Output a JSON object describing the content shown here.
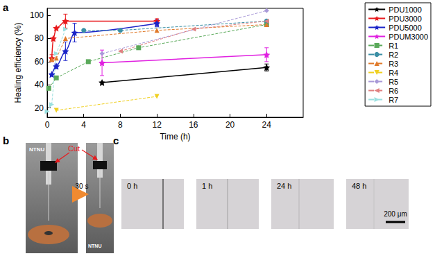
{
  "chart_data": {
    "type": "line",
    "xlabel": "Time (h)",
    "ylabel": "Healing efficiency (%)",
    "xlim": [
      0,
      28
    ],
    "xticks": [
      0,
      4,
      8,
      12,
      16,
      20,
      24
    ],
    "ylim": [
      12,
      106
    ],
    "yticks": [
      20,
      40,
      60,
      80,
      100
    ],
    "grid": false,
    "legend": "right",
    "series": [
      {
        "name": "PDU1000",
        "color": "#000000",
        "marker": "star",
        "line_style": "solid",
        "x": [
          6,
          24
        ],
        "values": [
          42,
          55
        ],
        "errors": [
          null,
          3
        ]
      },
      {
        "name": "PDU3000",
        "color": "#e8191c",
        "marker": "star",
        "line_style": "solid",
        "x": [
          0.5,
          0.67,
          1,
          2,
          12
        ],
        "values": [
          63,
          80,
          89,
          95,
          95
        ],
        "errors": [
          3,
          null,
          null,
          6,
          2
        ]
      },
      {
        "name": "PDU5000",
        "color": "#1a23c8",
        "marker": "star",
        "line_style": "solid",
        "x": [
          0.5,
          1,
          2,
          3,
          12
        ],
        "values": [
          49,
          56,
          69,
          85,
          93
        ],
        "errors": [
          null,
          2,
          8,
          8,
          3
        ]
      },
      {
        "name": "PDUM3000",
        "color": "#e020e0",
        "marker": "star",
        "line_style": "solid",
        "x": [
          6,
          24
        ],
        "values": [
          59,
          66
        ],
        "errors": [
          11,
          6
        ]
      },
      {
        "name": "R1",
        "color": "#5aa95a",
        "marker": "square",
        "line_style": "dashed",
        "x": [
          0.17,
          1,
          4.5,
          10,
          24
        ],
        "values": [
          37,
          46,
          60,
          72,
          92
        ]
      },
      {
        "name": "R2",
        "color": "#3a8fa5",
        "marker": "circle",
        "line_style": "dashed",
        "x": [
          4,
          8,
          24
        ],
        "values": [
          87,
          87,
          95
        ]
      },
      {
        "name": "R3",
        "color": "#e07a2a",
        "marker": "triangle",
        "line_style": "dashed",
        "x": [
          0.5,
          1,
          2,
          12,
          24
        ],
        "values": [
          62,
          63,
          80,
          87,
          92
        ]
      },
      {
        "name": "R4",
        "color": "#f0d020",
        "marker": "triangle-down",
        "line_style": "dashed",
        "x": [
          1,
          12
        ],
        "values": [
          18,
          30
        ]
      },
      {
        "name": "R5",
        "color": "#a99ad8",
        "marker": "diamond",
        "line_style": "dashed",
        "x": [
          6,
          24
        ],
        "values": [
          67,
          104
        ]
      },
      {
        "name": "R6",
        "color": "#e08080",
        "marker": "triangle-left",
        "line_style": "dashed",
        "x": [
          8,
          16,
          24
        ],
        "values": [
          69,
          88,
          95
        ]
      },
      {
        "name": "R7",
        "color": "#9ae0e0",
        "marker": "triangle-right",
        "line_style": "dashed",
        "x": [
          0,
          0.5,
          1,
          2
        ],
        "values": [
          17,
          23,
          67,
          88
        ]
      }
    ]
  },
  "panel_labels": [
    "a",
    "b",
    "c"
  ],
  "panel_b": {
    "logo": "NTNU",
    "cut": "Cut",
    "time": "30 s"
  },
  "panel_c": {
    "times": [
      "0 h",
      "1 h",
      "24 h",
      "48 h"
    ],
    "scale_bar": "200 μm"
  }
}
